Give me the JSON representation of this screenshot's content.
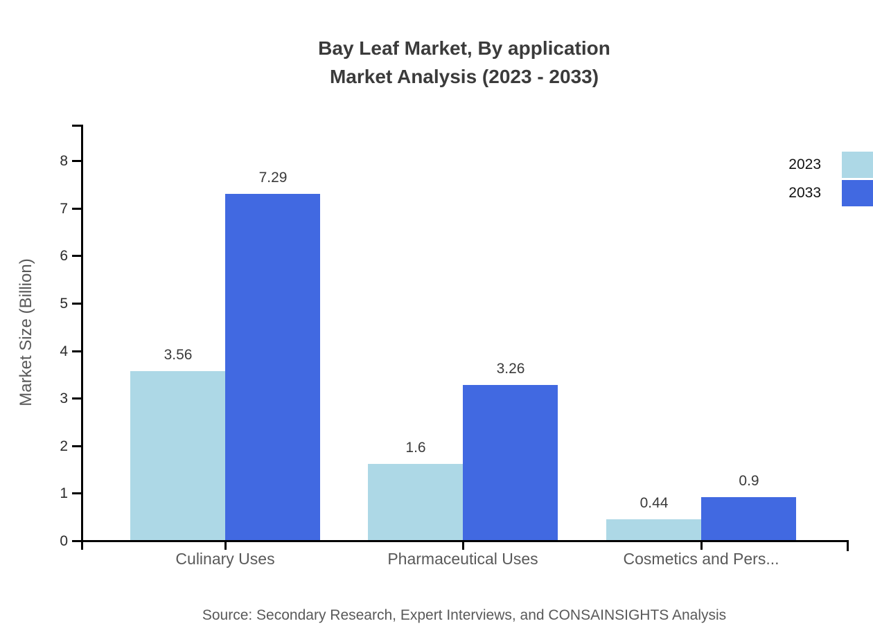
{
  "title": {
    "line1": "Bay Leaf Market, By application",
    "line2": "Market Analysis (2023 - 2033)"
  },
  "source_text": "Source: Secondary Research, Expert Interviews, and CONSAINSIGHTS Analysis",
  "chart_data": {
    "type": "bar",
    "title": "Bay Leaf Market, By application Market Analysis (2023 - 2033)",
    "categories": [
      "Culinary Uses",
      "Pharmaceutical Uses",
      "Cosmetics and Pers..."
    ],
    "series": [
      {
        "name": "2023",
        "color": "#ADD8E6",
        "values": [
          3.56,
          1.6,
          0.44
        ]
      },
      {
        "name": "2033",
        "color": "#4169E1",
        "values": [
          7.29,
          3.26,
          0.9
        ]
      }
    ],
    "xlabel": "",
    "ylabel": "Market Size (Billion)",
    "yticks": [
      0,
      1,
      2,
      3,
      4,
      5,
      6,
      7,
      8
    ],
    "ylim": [
      0,
      8.77
    ],
    "grid": false,
    "legend_position": "top-right",
    "value_labels_shown": true,
    "axis_color": "#000000",
    "text_colors": {
      "title": "#3b3b3b",
      "tick_labels": "#2b2b2b",
      "category_labels": "#595959",
      "value_labels": "#3a3a3a",
      "source": "#595959"
    }
  }
}
